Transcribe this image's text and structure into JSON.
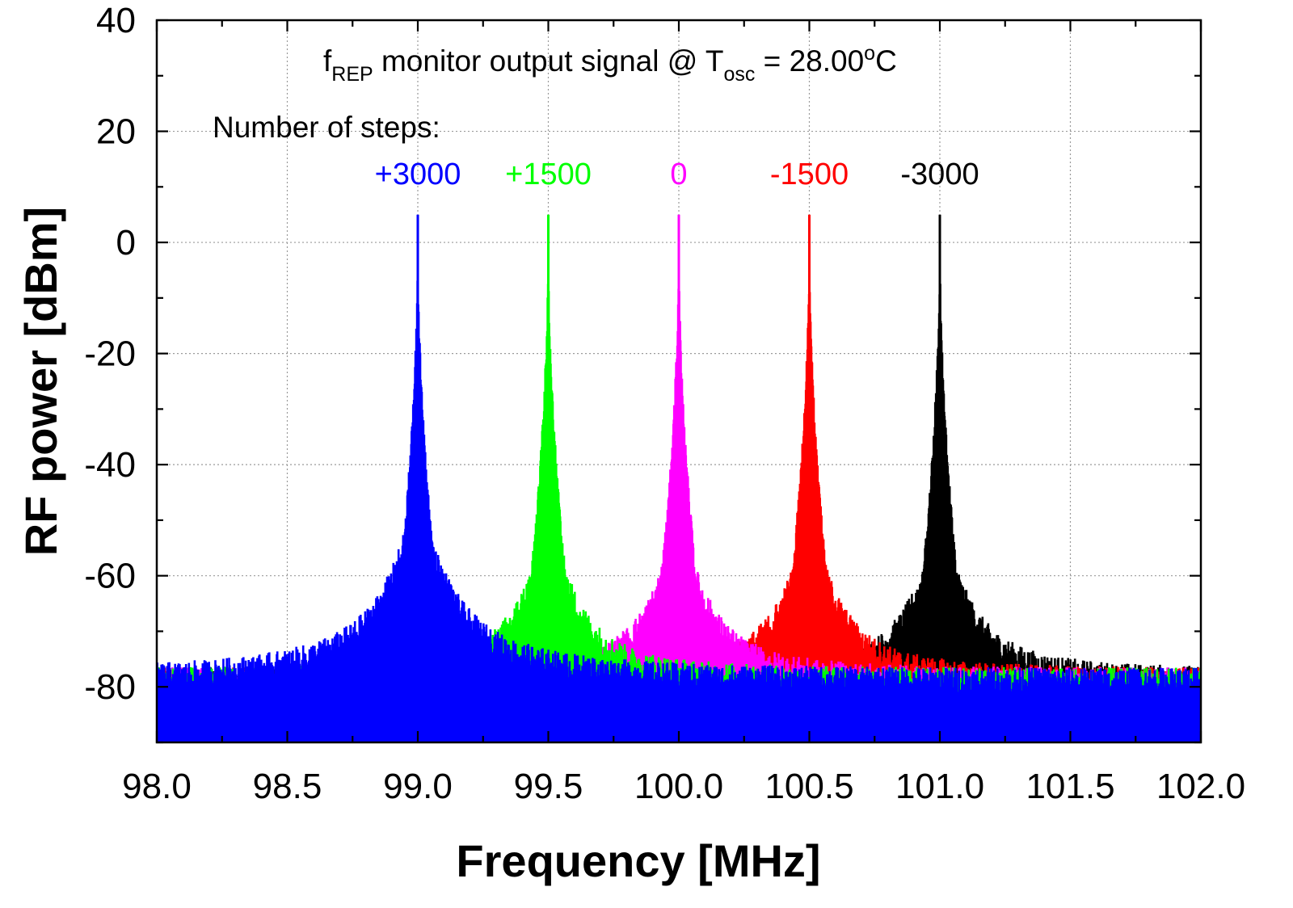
{
  "chart_data": {
    "type": "line",
    "title": "",
    "xlabel": "Frequency [MHz]",
    "ylabel": "RF power [dBm]",
    "xlim": [
      98.0,
      102.0
    ],
    "ylim": [
      -90,
      40
    ],
    "x_ticks": [
      "98.0",
      "98.5",
      "99.0",
      "99.5",
      "100.0",
      "100.5",
      "101.0",
      "101.5",
      "102.0"
    ],
    "x_tick_values": [
      98.0,
      98.5,
      99.0,
      99.5,
      100.0,
      100.5,
      101.0,
      101.5,
      102.0
    ],
    "y_ticks": [
      "40",
      "20",
      "0",
      "-20",
      "-40",
      "-60",
      "-80"
    ],
    "y_tick_values": [
      40,
      20,
      0,
      -20,
      -40,
      -60,
      -80
    ],
    "grid": true,
    "annotation": {
      "main": "f",
      "main_sub": "REP",
      "mid": " monitor output signal @ T",
      "mid_sub": "osc",
      "end": " = 28.00",
      "end_sup": "o",
      "end_tail": "C"
    },
    "steps_label": "Number of steps:",
    "noise_floor_dbm": -80,
    "series": [
      {
        "label": "+3000",
        "color": "#0000ff",
        "peak_x": 99.0,
        "peak_y": 5
      },
      {
        "label": "+1500",
        "color": "#00ff00",
        "peak_x": 99.5,
        "peak_y": 5
      },
      {
        "label": "0",
        "color": "#ff00ff",
        "peak_x": 100.0,
        "peak_y": 5
      },
      {
        "label": "-1500",
        "color": "#ff0000",
        "peak_x": 100.5,
        "peak_y": 5
      },
      {
        "label": "-3000",
        "color": "#000000",
        "peak_x": 101.0,
        "peak_y": 5
      }
    ]
  }
}
